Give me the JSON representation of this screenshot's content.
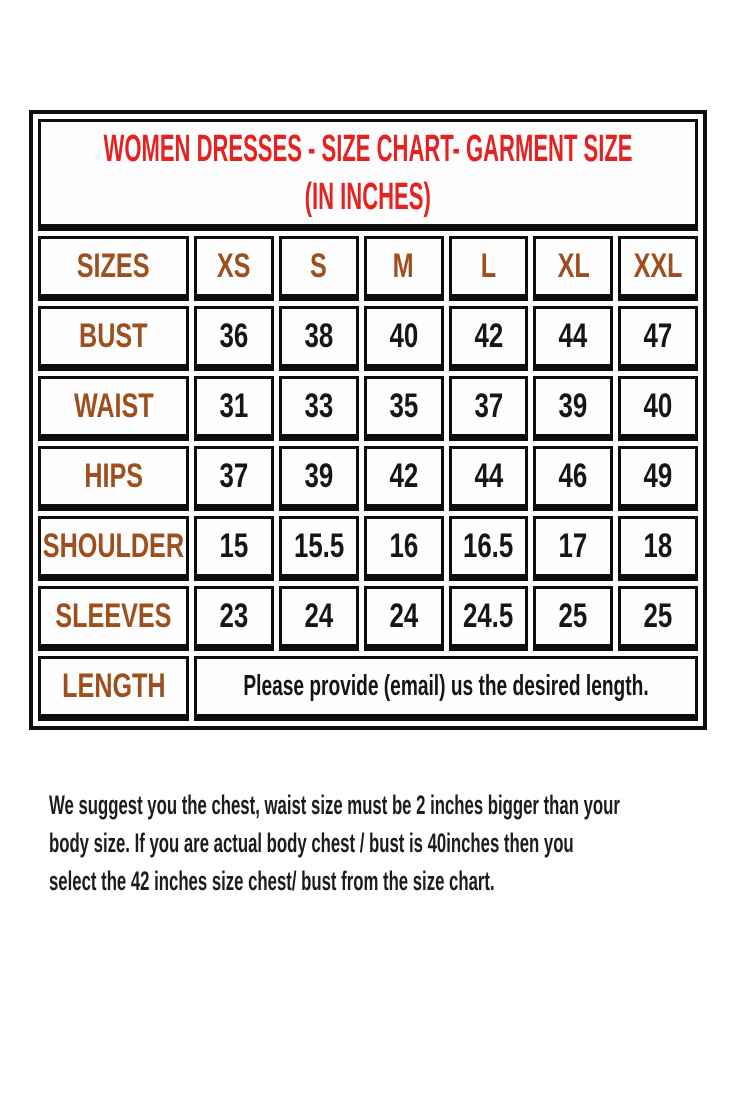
{
  "colors": {
    "title_red": "#e32320",
    "label_brown": "#9d4f1d",
    "value_black": "#161616",
    "border_black": "#0d0d0d",
    "cell_background": "#fffefe",
    "page_background": "#ffffff"
  },
  "chart_data": {
    "type": "table",
    "title": "WOMEN DRESSES - SIZE CHART- GARMENT SIZE (IN INCHES)",
    "title_lines": [
      "WOMEN DRESSES - SIZE CHART- GARMENT SIZE",
      "(IN INCHES)"
    ],
    "columns": [
      "SIZES",
      "XS",
      "S",
      "M",
      "L",
      "XL",
      "XXL"
    ],
    "rows": [
      {
        "label": "BUST",
        "values": [
          "36",
          "38",
          "40",
          "42",
          "44",
          "47"
        ]
      },
      {
        "label": "WAIST",
        "values": [
          "31",
          "33",
          "35",
          "37",
          "39",
          "40"
        ]
      },
      {
        "label": "HIPS",
        "values": [
          "37",
          "39",
          "42",
          "44",
          "46",
          "49"
        ]
      },
      {
        "label": "SHOULDER",
        "values": [
          "15",
          "15.5",
          "16",
          "16.5",
          "17",
          "18"
        ]
      },
      {
        "label": "SLEEVES",
        "values": [
          "23",
          "24",
          "24",
          "24.5",
          "25",
          "25"
        ]
      }
    ],
    "length_row": {
      "label": "LENGTH",
      "note": "Please provide (email) us the desired length."
    }
  },
  "footer_note": {
    "lines": [
      "We suggest you the chest, waist size must be 2 inches bigger than your",
      "body size. If you are actual body chest / bust is 40inches then you",
      "select the 42 inches size chest/ bust from the size chart."
    ]
  }
}
